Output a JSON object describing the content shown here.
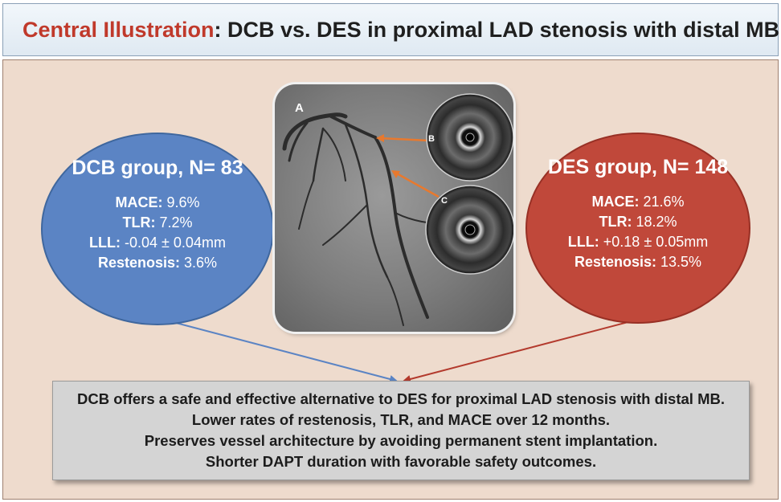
{
  "title": {
    "accent": "Central Illustration",
    "rest": ": DCB vs. DES in proximal LAD stenosis with distal MB"
  },
  "dcb": {
    "heading": "DCB group, N= 83",
    "stats": [
      {
        "label": "MACE:",
        "value": " 9.6%"
      },
      {
        "label": "TLR:",
        "value": " 7.2%"
      },
      {
        "label": "LLL:",
        "value": " -0.04 ± 0.04mm"
      },
      {
        "label": "Restenosis:",
        "value": " 3.6%"
      }
    ]
  },
  "des": {
    "heading": "DES group, N= 148",
    "stats": [
      {
        "label": "MACE:",
        "value": " 21.6%"
      },
      {
        "label": "TLR:",
        "value": " 18.2%"
      },
      {
        "label": "LLL:",
        "value": " +0.18 ± 0.05mm"
      },
      {
        "label": "Restenosis:",
        "value": " 13.5%"
      }
    ]
  },
  "image": {
    "label_a": "A",
    "label_b": "B",
    "label_c": "C"
  },
  "summary": {
    "lines": [
      "DCB offers a safe and effective alternative to DES for proximal LAD stenosis with distal MB.",
      "Lower rates of restenosis, TLR, and MACE over 12 months.",
      "Preserves vessel architecture by avoiding permanent stent implantation.",
      "Shorter DAPT duration with favorable safety outcomes."
    ]
  },
  "colors": {
    "title_accent": "#c0392b",
    "dcb": "#5b84c4",
    "des": "#c0483a",
    "panel": "#eedbcd",
    "pointer_arrow": "#e8792e"
  }
}
